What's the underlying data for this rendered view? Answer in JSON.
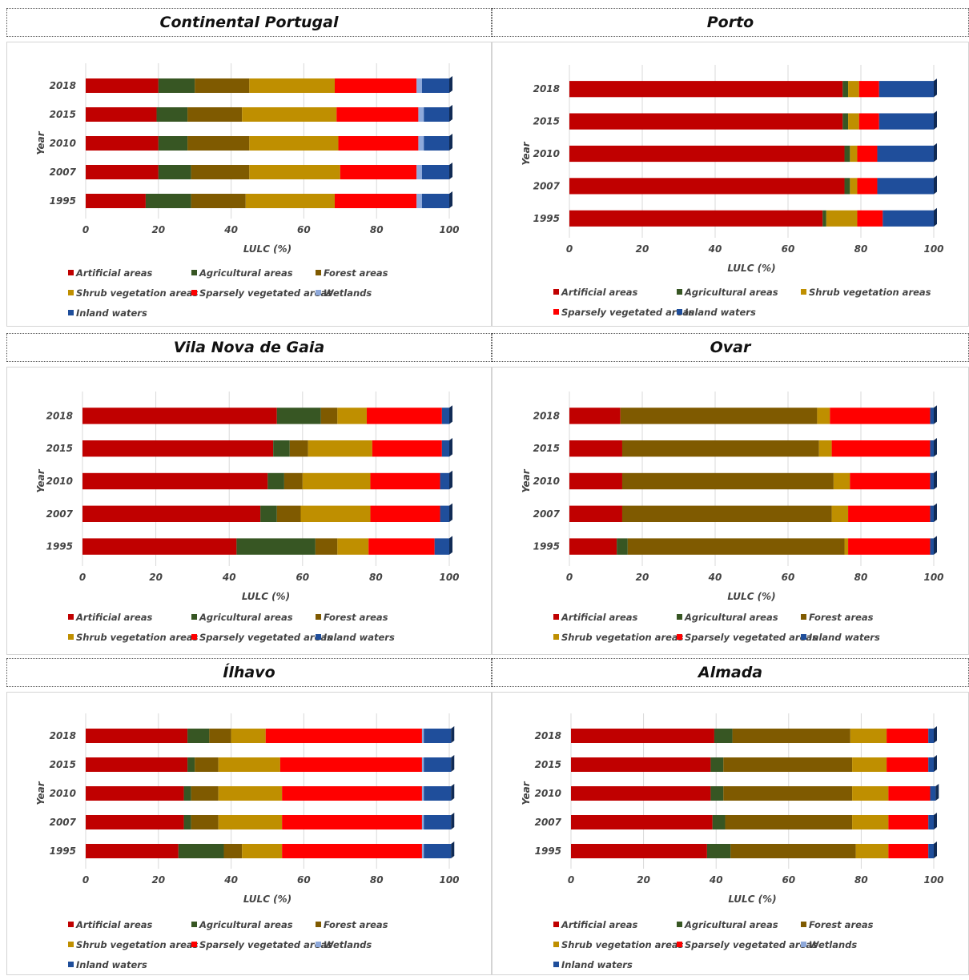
{
  "colors": {
    "Artificial areas": "#c00000",
    "Agricultural areas": "#375623",
    "Forest areas": "#7f5a00",
    "Shrub vegetation areas": "#bf8f00",
    "Sparsely vegetated areas": "#ff0000",
    "Wetlands": "#8ea9db",
    "Inland waters": "#1f4e9b"
  },
  "chart_data": [
    {
      "type": "bar",
      "orientation": "horizontal",
      "stacked": true,
      "title": "Continental Portugal",
      "xlabel": "LULC (%)",
      "ylabel": "Year",
      "categories": [
        "1995",
        "2007",
        "2010",
        "2015",
        "2018"
      ],
      "xlim": [
        0,
        100
      ],
      "xticks": [
        "0",
        "20",
        "40",
        "60",
        "80",
        "100"
      ],
      "legend": [
        "Artificial areas",
        "Agricultural areas",
        "Forest areas",
        "Shrub vegetation areas",
        "Sparsely vegetated areas",
        "Wetlands",
        "Inland waters"
      ],
      "series": [
        {
          "name": "Artificial areas",
          "values": [
            16.5,
            20,
            20,
            19.5,
            20
          ]
        },
        {
          "name": "Agricultural areas",
          "values": [
            12.5,
            9,
            8,
            8.5,
            10
          ]
        },
        {
          "name": "Forest areas",
          "values": [
            15,
            16,
            17,
            15,
            15
          ]
        },
        {
          "name": "Shrub vegetation areas",
          "values": [
            24.5,
            25,
            24.5,
            26,
            23.5
          ]
        },
        {
          "name": "Sparsely vegetated areas",
          "values": [
            22.5,
            21,
            22,
            22.5,
            22.5
          ]
        },
        {
          "name": "Wetlands",
          "values": [
            1.5,
            1.5,
            1.5,
            1.5,
            1.5
          ]
        },
        {
          "name": "Inland waters",
          "values": [
            7.5,
            7.5,
            7,
            7,
            7.5
          ]
        }
      ]
    },
    {
      "type": "bar",
      "orientation": "horizontal",
      "stacked": true,
      "title": "Porto",
      "xlabel": "LULC (%)",
      "ylabel": "Year",
      "categories": [
        "1995",
        "2007",
        "2010",
        "2015",
        "2018"
      ],
      "xlim": [
        0,
        100
      ],
      "xticks": [
        "0",
        "20",
        "40",
        "60",
        "80",
        "100"
      ],
      "legend": [
        "Artificial areas",
        "Agricultural areas",
        "Shrub vegetation areas",
        "Sparsely vegetated areas",
        "Inland waters"
      ],
      "series": [
        {
          "name": "Artificial areas",
          "values": [
            69.5,
            75.5,
            75.5,
            75,
            75
          ]
        },
        {
          "name": "Agricultural areas",
          "values": [
            1,
            1.5,
            1.5,
            1.5,
            1.5
          ]
        },
        {
          "name": "Shrub vegetation areas",
          "values": [
            8.5,
            2,
            2,
            3,
            3
          ]
        },
        {
          "name": "Sparsely vegetated areas",
          "values": [
            7,
            5.5,
            5.5,
            5.5,
            5.5
          ]
        },
        {
          "name": "Inland waters",
          "values": [
            14,
            15.5,
            15.5,
            15,
            15
          ]
        }
      ]
    },
    {
      "type": "bar",
      "orientation": "horizontal",
      "stacked": true,
      "title": "Vila Nova de Gaia",
      "xlabel": "LULC (%)",
      "ylabel": "Year",
      "categories": [
        "1995",
        "2007",
        "2010",
        "2015",
        "2018"
      ],
      "xlim": [
        0,
        100
      ],
      "xticks": [
        "0",
        "20",
        "40",
        "60",
        "80",
        "100"
      ],
      "legend": [
        "Artificial areas",
        "Agricultural areas",
        "Forest areas",
        "Shrub vegetation areas",
        "Sparsely vegetated areas",
        "Inland waters"
      ],
      "series": [
        {
          "name": "Artificial areas",
          "values": [
            42,
            48.5,
            50.5,
            52,
            53
          ]
        },
        {
          "name": "Agricultural areas",
          "values": [
            21.5,
            4.5,
            4.5,
            4.5,
            12
          ]
        },
        {
          "name": "Forest areas",
          "values": [
            6,
            6.5,
            5,
            5,
            4.5
          ]
        },
        {
          "name": "Shrub vegetation areas",
          "values": [
            8.5,
            19,
            18.5,
            17.5,
            8
          ]
        },
        {
          "name": "Sparsely vegetated areas",
          "values": [
            18,
            19,
            19,
            19,
            20.5
          ]
        },
        {
          "name": "Inland waters",
          "values": [
            4,
            2.5,
            2.5,
            2,
            2
          ]
        }
      ]
    },
    {
      "type": "bar",
      "orientation": "horizontal",
      "stacked": true,
      "title": "Ovar",
      "xlabel": "LULC (%)",
      "ylabel": "Year",
      "categories": [
        "1995",
        "2007",
        "2010",
        "2015",
        "2018"
      ],
      "xlim": [
        0,
        100
      ],
      "xticks": [
        "0",
        "20",
        "40",
        "60",
        "80",
        "100"
      ],
      "legend": [
        "Artificial areas",
        "Agricultural areas",
        "Forest areas",
        "Shrub vegetation areas",
        "Sparsely vegetated areas",
        "Inland waters"
      ],
      "series": [
        {
          "name": "Artificial areas",
          "values": [
            13,
            14.5,
            14.5,
            14.5,
            14
          ]
        },
        {
          "name": "Agricultural areas",
          "values": [
            3,
            0,
            0,
            0,
            0
          ]
        },
        {
          "name": "Forest areas",
          "values": [
            59.5,
            57.5,
            58,
            54,
            54
          ]
        },
        {
          "name": "Shrub vegetation areas",
          "values": [
            1,
            4.5,
            4.5,
            3.5,
            3.5
          ]
        },
        {
          "name": "Sparsely vegetated areas",
          "values": [
            22.5,
            22.5,
            22,
            27,
            27.5
          ]
        },
        {
          "name": "Inland waters",
          "values": [
            1,
            1,
            1,
            1,
            1
          ]
        }
      ]
    },
    {
      "type": "bar",
      "orientation": "horizontal",
      "stacked": true,
      "title": "Ílhavo",
      "xlabel": "LULC (%)",
      "ylabel": "Year",
      "categories": [
        "1995",
        "2007",
        "2010",
        "2015",
        "2018"
      ],
      "xlim": [
        0,
        100
      ],
      "xticks": [
        "0",
        "20",
        "40",
        "60",
        "80",
        "100"
      ],
      "legend": [
        "Artificial areas",
        "Agricultural areas",
        "Forest areas",
        "Shrub vegetation areas",
        "Sparsely vegetated areas",
        "Wetlands",
        "Inland waters"
      ],
      "series": [
        {
          "name": "Artificial areas",
          "values": [
            25.5,
            27,
            27,
            28,
            28
          ]
        },
        {
          "name": "Agricultural areas",
          "values": [
            12.5,
            2,
            2,
            2,
            6
          ]
        },
        {
          "name": "Forest areas",
          "values": [
            5,
            7.5,
            7.5,
            6.5,
            6
          ]
        },
        {
          "name": "Shrub vegetation areas",
          "values": [
            11,
            17.5,
            17.5,
            17,
            9.5
          ]
        },
        {
          "name": "Sparsely vegetated areas",
          "values": [
            38.5,
            38.5,
            38.5,
            39,
            43
          ]
        },
        {
          "name": "Wetlands",
          "values": [
            0.5,
            0.5,
            0.5,
            0.5,
            0.5
          ]
        },
        {
          "name": "Inland waters",
          "values": [
            7.5,
            7.5,
            7.5,
            7.5,
            7.5
          ]
        }
      ]
    },
    {
      "type": "bar",
      "orientation": "horizontal",
      "stacked": true,
      "title": "Almada",
      "xlabel": "LULC (%)",
      "ylabel": "Year",
      "categories": [
        "1995",
        "2007",
        "2010",
        "2015",
        "2018"
      ],
      "xlim": [
        0,
        100
      ],
      "xticks": [
        "0",
        "20",
        "40",
        "60",
        "80",
        "100"
      ],
      "legend": [
        "Artificial areas",
        "Agricultural areas",
        "Forest areas",
        "Shrub vegetation areas",
        "Sparsely vegetated areas",
        "Wetlands",
        "Inland waters"
      ],
      "series": [
        {
          "name": "Artificial areas",
          "values": [
            37.5,
            39,
            38.5,
            38.5,
            39.5
          ]
        },
        {
          "name": "Agricultural areas",
          "values": [
            6.5,
            3.5,
            3.5,
            3.5,
            5
          ]
        },
        {
          "name": "Forest areas",
          "values": [
            34.5,
            35,
            35.5,
            35.5,
            32.5
          ]
        },
        {
          "name": "Shrub vegetation areas",
          "values": [
            9,
            10,
            10,
            9.5,
            10
          ]
        },
        {
          "name": "Sparsely vegetated areas",
          "values": [
            11,
            11,
            11.5,
            11.5,
            11.5
          ]
        },
        {
          "name": "Wetlands",
          "values": [
            0,
            0,
            0,
            0,
            0
          ]
        },
        {
          "name": "Inland waters",
          "values": [
            1.5,
            1.5,
            1.5,
            1.5,
            1.5
          ]
        }
      ]
    }
  ]
}
